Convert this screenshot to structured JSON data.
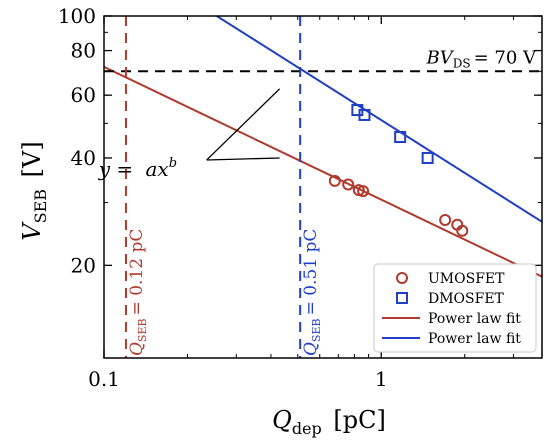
{
  "chart_data": {
    "type": "scatter",
    "title": "",
    "xlabel": {
      "main": "Q",
      "sub": "dep",
      "unit": "[pC]"
    },
    "ylabel": {
      "main": "V",
      "sub": "SEB",
      "unit": "[V]"
    },
    "x_scale": "log",
    "y_scale": "log",
    "xlim": [
      0.1,
      3.8
    ],
    "ylim": [
      11,
      100
    ],
    "x_ticks": [
      {
        "value": 0.1,
        "label": "0.1"
      },
      {
        "value": 1,
        "label": "1"
      }
    ],
    "y_ticks": [
      {
        "value": 20,
        "label": "20"
      },
      {
        "value": 40,
        "label": "40"
      },
      {
        "value": 60,
        "label": "60"
      },
      {
        "value": 80,
        "label": "80"
      },
      {
        "value": 100,
        "label": "100"
      }
    ],
    "grid": false,
    "legend_position": "bottom-right",
    "series": [
      {
        "name": "UMOSFET",
        "marker": "circle",
        "color": "#b03a2e",
        "points": [
          {
            "x": 0.68,
            "y": 34.5
          },
          {
            "x": 0.76,
            "y": 33.7
          },
          {
            "x": 0.83,
            "y": 32.5
          },
          {
            "x": 0.86,
            "y": 32.3
          },
          {
            "x": 1.7,
            "y": 26.8
          },
          {
            "x": 1.88,
            "y": 26.0
          },
          {
            "x": 1.96,
            "y": 25.0
          }
        ]
      },
      {
        "name": "DMOSFET",
        "marker": "square",
        "color": "#1f3fc4",
        "points": [
          {
            "x": 0.82,
            "y": 54.5
          },
          {
            "x": 0.87,
            "y": 52.8
          },
          {
            "x": 1.17,
            "y": 45.8
          },
          {
            "x": 1.47,
            "y": 40.0
          }
        ]
      }
    ],
    "fits": [
      {
        "name": "Power law fit",
        "color": "#b03a2e",
        "x_range": [
          0.1,
          3.8
        ],
        "y_range": [
          72,
          18.6
        ]
      },
      {
        "name": "Power law fit",
        "color": "#1f3fc4",
        "x_range": [
          0.255,
          3.8
        ],
        "y_range": [
          100,
          26.5
        ]
      }
    ],
    "reference_lines": [
      {
        "orientation": "horizontal",
        "value": 70,
        "color": "#000000",
        "label_parts": [
          "BV",
          "DS",
          "= 70 V"
        ]
      },
      {
        "orientation": "vertical",
        "value": 0.12,
        "color": "#b03a2e",
        "label_parts": [
          "Q",
          "SEB",
          "= 0.12 pC"
        ]
      },
      {
        "orientation": "vertical",
        "value": 0.51,
        "color": "#1f3fc4",
        "label_parts": [
          "Q",
          "SEB",
          "= 0.51 pC"
        ]
      }
    ],
    "annotation": {
      "text_parts": [
        "y",
        " = ",
        "ax",
        "b"
      ],
      "anchor": {
        "x": 0.255,
        "y": 37.5
      },
      "targets": [
        {
          "x": 0.43,
          "y": 62.5
        },
        {
          "x": 0.43,
          "y": 40
        }
      ]
    }
  }
}
